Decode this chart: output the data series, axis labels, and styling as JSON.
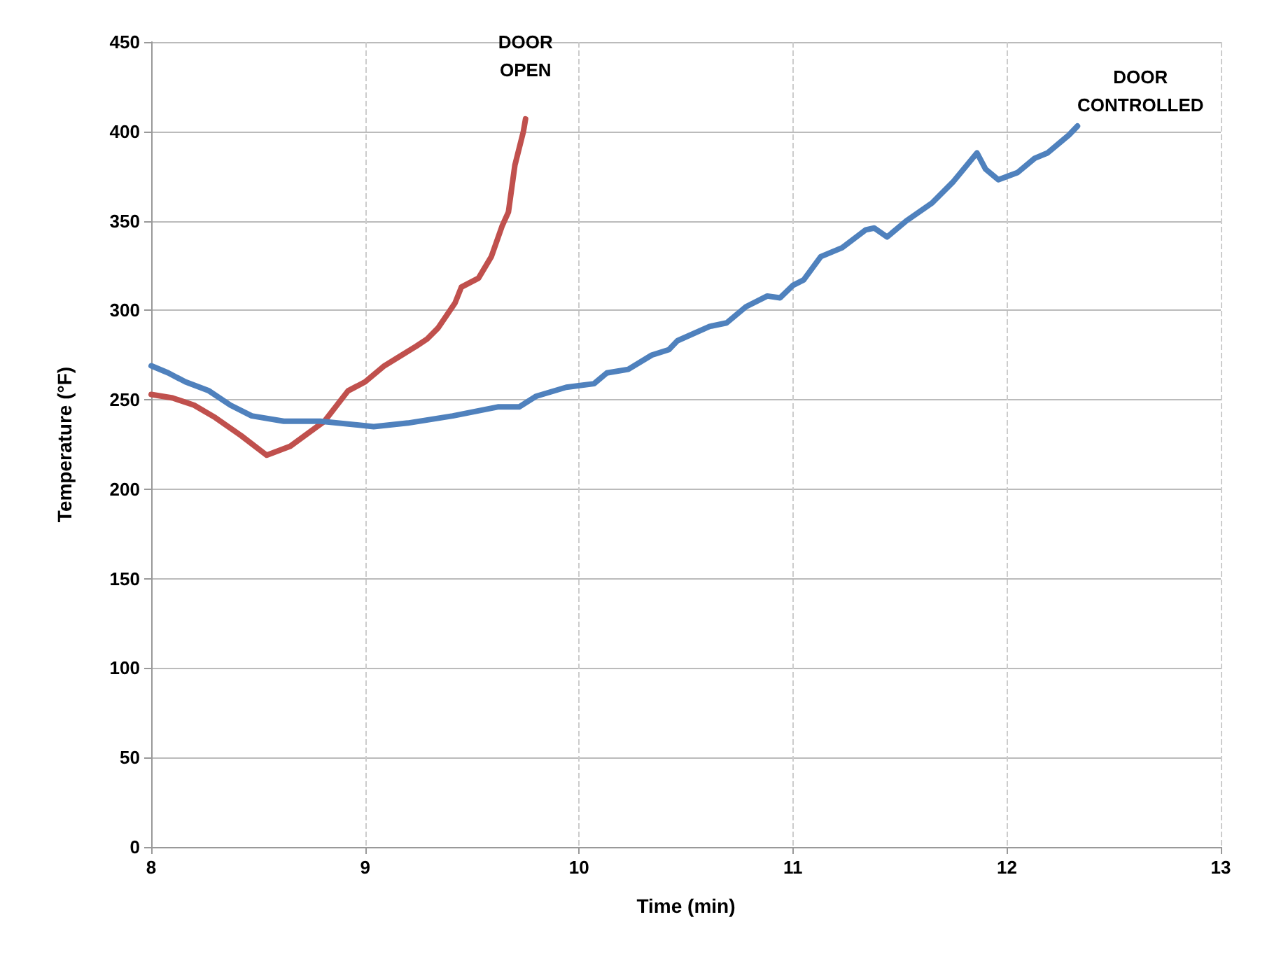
{
  "chart_data": {
    "type": "line",
    "xlabel": "Time (min)",
    "ylabel": "Temperature (°F)",
    "xlim": [
      8,
      13
    ],
    "xticks": [
      8,
      9,
      10,
      11,
      12,
      13
    ],
    "ylim": [
      0,
      450
    ],
    "yticks": [
      0,
      50,
      100,
      150,
      200,
      250,
      300,
      350,
      400,
      450
    ],
    "grid": true,
    "marker": "none",
    "line_style": "solid",
    "annotations": [
      "DOOR\nOPEN",
      "DOOR\nCONTROLLED"
    ],
    "series": [
      {
        "color": "#c0504d",
        "x": [
          8.0,
          8.1,
          8.2,
          8.3,
          8.42,
          8.54,
          8.65,
          8.81,
          8.92,
          9.0,
          9.09,
          9.24,
          9.29,
          9.34,
          9.42,
          9.45,
          9.53,
          9.59,
          9.64,
          9.67,
          9.7,
          9.74,
          9.75
        ],
        "values": [
          253,
          251,
          247,
          240,
          230,
          219,
          224,
          238,
          255,
          260,
          269,
          280,
          284,
          290,
          304,
          313,
          318,
          330,
          347,
          355,
          381,
          400,
          407
        ]
      },
      {
        "color": "#4f81bd",
        "x": [
          8.0,
          8.08,
          8.16,
          8.27,
          8.37,
          8.47,
          8.62,
          8.79,
          9.04,
          9.2,
          9.41,
          9.62,
          9.72,
          9.8,
          9.94,
          10.07,
          10.13,
          10.23,
          10.34,
          10.42,
          10.46,
          10.61,
          10.69,
          10.78,
          10.88,
          10.94,
          11.0,
          11.05,
          11.13,
          11.23,
          11.34,
          11.38,
          11.44,
          11.53,
          11.65,
          11.75,
          11.86,
          11.9,
          11.96,
          12.05,
          12.13,
          12.19,
          12.25,
          12.29,
          12.33
        ],
        "values": [
          269,
          265,
          260,
          255,
          247,
          241,
          238,
          238,
          235,
          237,
          241,
          246,
          246,
          252,
          257,
          259,
          265,
          267,
          275,
          278,
          283,
          291,
          293,
          302,
          308,
          307,
          314,
          317,
          330,
          335,
          345,
          346,
          341,
          350,
          360,
          372,
          388,
          379,
          373,
          377,
          385,
          388,
          394,
          398,
          403
        ]
      }
    ]
  }
}
